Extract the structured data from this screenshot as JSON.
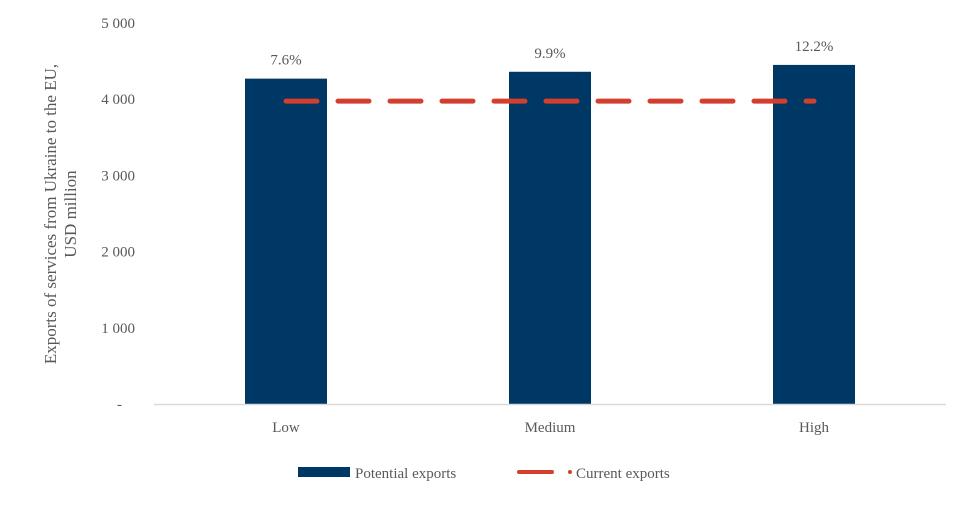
{
  "chart_data": {
    "type": "bar",
    "title": "",
    "xlabel": "",
    "ylabel_lines": [
      "Exports of services from Ukraine to the EU,",
      "USD million"
    ],
    "ylim": [
      0,
      5000
    ],
    "yticks": [
      0,
      1000,
      2000,
      3000,
      4000,
      5000
    ],
    "ytick_labels": [
      "-",
      "1 000",
      "2 000",
      "3 000",
      "4 000",
      "5 000"
    ],
    "categories": [
      "Low",
      "Medium",
      "High"
    ],
    "series": [
      {
        "name": "Potential exports",
        "type": "bar",
        "color": "#003865",
        "values": [
          4270,
          4360,
          4450
        ],
        "data_labels": [
          "7.6%",
          "9.9%",
          "12.2%"
        ]
      },
      {
        "name": "Current exports",
        "type": "line",
        "style": "dashed",
        "color": "#d33f2c",
        "values": [
          3975,
          3975,
          3975
        ]
      }
    ],
    "legend": {
      "position": "bottom",
      "entries": [
        "Potential exports",
        "Current exports"
      ]
    },
    "grid": false
  }
}
